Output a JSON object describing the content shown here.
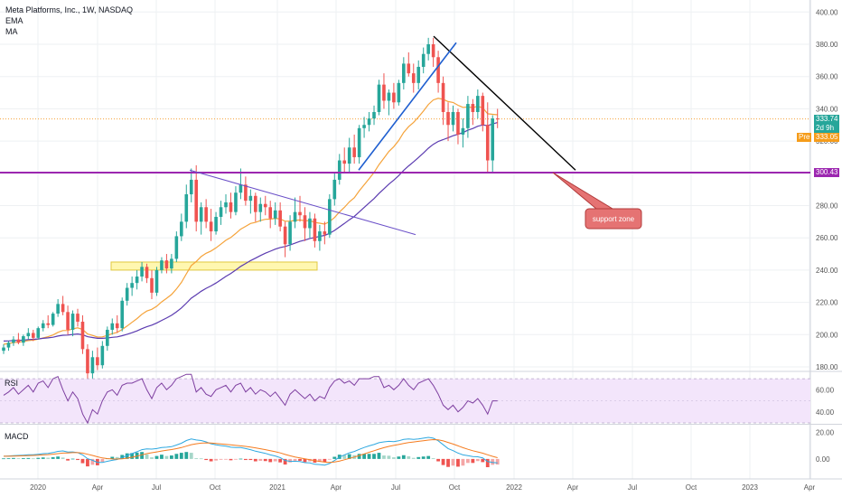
{
  "header": {
    "symbol": "Meta Platforms, Inc., 1W, NASDAQ",
    "indicator1": "EMA",
    "indicator2": "MA"
  },
  "price_labels": {
    "last": "333.74",
    "countdown": "2d 9h",
    "pre_tag": "Pre",
    "pre_value": "333.05",
    "support_value": "300.43"
  },
  "annotation": {
    "text": "support zone"
  },
  "panes": {
    "rsi_label": "RSI",
    "macd_label": "MACD"
  },
  "colors": {
    "up": "#26a69a",
    "down": "#ef5350",
    "ema": "#f5a33a",
    "ma": "#5b3bb0",
    "support": "#9c27b0",
    "rsi": "#7e3fa0",
    "macd": "#2ea8e0",
    "signal": "#f57c20"
  },
  "chart_data": [
    {
      "type": "candlestick",
      "title": "Meta Platforms, Inc., 1W, NASDAQ",
      "y_ticks": [
        180,
        200,
        220,
        240,
        260,
        280,
        300,
        320,
        340,
        360,
        380,
        400
      ],
      "ylim": [
        178,
        405
      ],
      "x_ticks": [
        "2020",
        "Apr",
        "Jul",
        "Oct",
        "2021",
        "Apr",
        "Jul",
        "Oct",
        "2022",
        "Apr",
        "Jul",
        "Oct",
        "2023",
        "Apr"
      ],
      "support_level": 300.43,
      "last_close": 333.74,
      "premarket": 333.05,
      "ohlc": [
        [
          190,
          194,
          188,
          192
        ],
        [
          192,
          196,
          190,
          195
        ],
        [
          195,
          199,
          193,
          197
        ],
        [
          197,
          201,
          194,
          195
        ],
        [
          195,
          200,
          193,
          199
        ],
        [
          199,
          204,
          197,
          201
        ],
        [
          201,
          203,
          196,
          198
        ],
        [
          198,
          205,
          197,
          204
        ],
        [
          204,
          209,
          202,
          207
        ],
        [
          207,
          212,
          204,
          206
        ],
        [
          206,
          214,
          205,
          213
        ],
        [
          213,
          222,
          211,
          219
        ],
        [
          219,
          224,
          212,
          214
        ],
        [
          214,
          218,
          200,
          203
        ],
        [
          203,
          215,
          199,
          213
        ],
        [
          213,
          216,
          205,
          208
        ],
        [
          208,
          212,
          188,
          191
        ],
        [
          191,
          194,
          172,
          176
        ],
        [
          176,
          190,
          170,
          186
        ],
        [
          186,
          192,
          178,
          181
        ],
        [
          181,
          196,
          179,
          193
        ],
        [
          193,
          205,
          190,
          203
        ],
        [
          203,
          210,
          200,
          207
        ],
        [
          207,
          212,
          201,
          204
        ],
        [
          204,
          223,
          202,
          221
        ],
        [
          221,
          232,
          218,
          229
        ],
        [
          229,
          236,
          224,
          232
        ],
        [
          232,
          240,
          228,
          236
        ],
        [
          236,
          245,
          233,
          242
        ],
        [
          242,
          244,
          232,
          235
        ],
        [
          235,
          240,
          222,
          226
        ],
        [
          226,
          242,
          224,
          240
        ],
        [
          240,
          248,
          238,
          246
        ],
        [
          246,
          250,
          238,
          241
        ],
        [
          241,
          250,
          238,
          247
        ],
        [
          247,
          264,
          245,
          261
        ],
        [
          261,
          275,
          258,
          270
        ],
        [
          270,
          293,
          266,
          287
        ],
        [
          287,
          303,
          282,
          296
        ],
        [
          296,
          305,
          264,
          270
        ],
        [
          270,
          282,
          262,
          279
        ],
        [
          279,
          284,
          266,
          270
        ],
        [
          270,
          278,
          258,
          264
        ],
        [
          264,
          276,
          262,
          273
        ],
        [
          273,
          283,
          268,
          279
        ],
        [
          279,
          287,
          275,
          282
        ],
        [
          282,
          288,
          272,
          276
        ],
        [
          276,
          292,
          274,
          288
        ],
        [
          288,
          303,
          284,
          293
        ],
        [
          293,
          298,
          280,
          283
        ],
        [
          283,
          290,
          275,
          286
        ],
        [
          286,
          288,
          270,
          276
        ],
        [
          276,
          285,
          270,
          281
        ],
        [
          281,
          286,
          274,
          279
        ],
        [
          279,
          283,
          266,
          272
        ],
        [
          272,
          282,
          268,
          277
        ],
        [
          277,
          282,
          264,
          267
        ],
        [
          267,
          270,
          248,
          256
        ],
        [
          256,
          274,
          252,
          270
        ],
        [
          270,
          285,
          266,
          276
        ],
        [
          276,
          286,
          270,
          274
        ],
        [
          274,
          279,
          258,
          266
        ],
        [
          266,
          276,
          260,
          272
        ],
        [
          272,
          275,
          254,
          258
        ],
        [
          258,
          268,
          252,
          264
        ],
        [
          264,
          270,
          256,
          262
        ],
        [
          262,
          287,
          260,
          284
        ],
        [
          284,
          300,
          280,
          296
        ],
        [
          296,
          312,
          293,
          308
        ],
        [
          308,
          316,
          300,
          306
        ],
        [
          306,
          322,
          300,
          316
        ],
        [
          316,
          324,
          306,
          310
        ],
        [
          310,
          330,
          306,
          328
        ],
        [
          328,
          335,
          322,
          330
        ],
        [
          330,
          338,
          326,
          334
        ],
        [
          334,
          342,
          330,
          338
        ],
        [
          338,
          358,
          336,
          355
        ],
        [
          355,
          362,
          340,
          345
        ],
        [
          345,
          352,
          336,
          350
        ],
        [
          350,
          356,
          340,
          344
        ],
        [
          344,
          358,
          342,
          356
        ],
        [
          356,
          372,
          352,
          368
        ],
        [
          368,
          375,
          360,
          362
        ],
        [
          362,
          368,
          350,
          356
        ],
        [
          356,
          370,
          352,
          366
        ],
        [
          366,
          378,
          362,
          374
        ],
        [
          374,
          384,
          370,
          380
        ],
        [
          380,
          384,
          366,
          372
        ],
        [
          372,
          376,
          350,
          356
        ],
        [
          356,
          360,
          330,
          338
        ],
        [
          338,
          344,
          320,
          330
        ],
        [
          330,
          342,
          326,
          338
        ],
        [
          338,
          340,
          318,
          324
        ],
        [
          324,
          334,
          316,
          328
        ],
        [
          328,
          348,
          322,
          343
        ],
        [
          343,
          346,
          330,
          338
        ],
        [
          338,
          352,
          334,
          348
        ],
        [
          348,
          350,
          326,
          330
        ],
        [
          330,
          344,
          300,
          308
        ],
        [
          308,
          336,
          300,
          334
        ],
        [
          334,
          340,
          328,
          333.74
        ]
      ],
      "ema": [
        194,
        194.5,
        195,
        195.3,
        195.8,
        196.3,
        196.6,
        197.2,
        198,
        198.7,
        199.8,
        201.4,
        202.5,
        202.6,
        203.6,
        204.2,
        203.2,
        200.4,
        199.5,
        198.5,
        198.6,
        199.5,
        200.6,
        201.4,
        203.2,
        205.3,
        207.6,
        209.9,
        212.6,
        214.6,
        215.7,
        217.6,
        220.3,
        222.5,
        224.9,
        228.3,
        232.4,
        237.7,
        242.8,
        245.3,
        248.4,
        250.4,
        251.8,
        253.8,
        256.1,
        258.5,
        260.2,
        262.7,
        265.4,
        267.1,
        268.9,
        269.6,
        270.7,
        271.5,
        271.6,
        272.1,
        271.7,
        270.3,
        270.3,
        270.8,
        271.1,
        270.6,
        270.7,
        269.5,
        269.1,
        268.5,
        270,
        272.6,
        276.1,
        278.9,
        282.3,
        284.9,
        289.1,
        292.9,
        296.7,
        300.5,
        305.4,
        309.4,
        313.5,
        316.5,
        320.4,
        325.3,
        328.9,
        331.6,
        334.9,
        338.6,
        342.7,
        345.5,
        346.5,
        345.9,
        344.5,
        343.9,
        342.2,
        340.9,
        341.1,
        340.8,
        341.5,
        340.6,
        336.9,
        336.6,
        336.3
      ],
      "ma": [
        196,
        196.1,
        196.3,
        196.4,
        196.6,
        196.9,
        197.1,
        197.3,
        197.7,
        198,
        198.4,
        199.1,
        199.6,
        199.7,
        200.1,
        200.4,
        199.9,
        198.7,
        198.2,
        197.7,
        197.7,
        197.9,
        198.3,
        198.6,
        199.3,
        200.2,
        201.2,
        202.3,
        203.7,
        204.9,
        205.9,
        207.2,
        208.8,
        210.3,
        212,
        214.1,
        216.5,
        219.5,
        222.6,
        224.7,
        226.9,
        228.7,
        230.2,
        232,
        234,
        236.1,
        237.9,
        240,
        242.3,
        244.1,
        245.9,
        247.4,
        249,
        250.5,
        251.7,
        253,
        254,
        254.6,
        255.6,
        256.7,
        257.8,
        258.6,
        259.6,
        260.2,
        260.9,
        261.5,
        262.8,
        264.6,
        266.8,
        268.9,
        271.2,
        273.3,
        276,
        278.8,
        281.6,
        284.3,
        287.5,
        290.4,
        293.3,
        295.8,
        298.6,
        301.8,
        304.6,
        307.1,
        309.8,
        312.6,
        315.6,
        318,
        319.8,
        320.9,
        322.1,
        323.3,
        324.2,
        325.2,
        326.7,
        327.8,
        329.2,
        330,
        329.6,
        330.6,
        331.5
      ]
    },
    {
      "type": "line",
      "name_label": "RSI",
      "y_ticks": [
        40,
        60
      ],
      "ylim": [
        30,
        75
      ],
      "bands": [
        30,
        70
      ],
      "values": [
        55,
        58,
        62,
        56,
        60,
        64,
        58,
        66,
        68,
        62,
        70,
        72,
        60,
        50,
        58,
        52,
        38,
        30,
        42,
        38,
        50,
        58,
        60,
        55,
        64,
        66,
        66,
        68,
        70,
        60,
        52,
        62,
        66,
        60,
        64,
        70,
        72,
        74,
        74,
        58,
        62,
        56,
        54,
        60,
        62,
        64,
        58,
        64,
        66,
        58,
        62,
        56,
        60,
        58,
        54,
        58,
        52,
        46,
        56,
        60,
        56,
        52,
        56,
        50,
        54,
        52,
        62,
        68,
        70,
        66,
        68,
        64,
        70,
        70,
        70,
        72,
        72,
        62,
        64,
        60,
        64,
        70,
        64,
        60,
        66,
        68,
        70,
        64,
        56,
        46,
        42,
        46,
        40,
        44,
        50,
        48,
        52,
        46,
        38,
        50,
        50
      ]
    },
    {
      "type": "bar+line",
      "name_label": "MACD",
      "y_ticks": [
        0.0,
        20.0
      ],
      "ylim": [
        -15,
        25
      ],
      "histogram": [
        0.4,
        0.5,
        0.7,
        0.5,
        0.6,
        0.7,
        0.4,
        0.8,
        1.1,
        0.9,
        1.3,
        1.8,
        1.0,
        -1.2,
        0.2,
        -0.8,
        -3.2,
        -5.6,
        -4.4,
        -4.8,
        -2.2,
        0.4,
        1.6,
        1.4,
        3.0,
        4.2,
        4.4,
        4.8,
        5.2,
        3.4,
        1.2,
        2.2,
        3.2,
        2.2,
        2.6,
        3.8,
        4.6,
        5.2,
        4.6,
        0.6,
        0.4,
        -0.8,
        -1.8,
        -1.2,
        -0.6,
        -0.2,
        -1.0,
        -0.2,
        0.2,
        -0.8,
        -0.8,
        -1.8,
        -1.4,
        -1.6,
        -2.4,
        -1.8,
        -2.6,
        -4.2,
        -2.6,
        -1.4,
        -1.4,
        -2.4,
        -1.8,
        -2.8,
        -2.2,
        -2.4,
        -0.4,
        1.6,
        3.2,
        3.0,
        3.6,
        2.8,
        3.8,
        3.8,
        3.8,
        3.8,
        4.6,
        2.6,
        2.4,
        1.2,
        1.8,
        2.8,
        2.0,
        0.8,
        1.4,
        1.8,
        2.2,
        0.6,
        -1.8,
        -4.6,
        -6.0,
        -5.0,
        -5.8,
        -5.0,
        -3.0,
        -3.0,
        -1.6,
        -2.4,
        -6.2,
        -4.4,
        -4.2
      ],
      "macd": [
        2,
        2.2,
        2.5,
        2.6,
        2.8,
        3.1,
        3.1,
        3.5,
        4,
        4.2,
        4.8,
        5.7,
        6,
        5.2,
        5.3,
        4.7,
        3,
        0.2,
        -1,
        -2.6,
        -2.6,
        -1.8,
        -1,
        -0.4,
        1,
        2.6,
        4,
        5.4,
        7,
        7.6,
        7.4,
        7.8,
        8.6,
        8.8,
        9.2,
        10.4,
        11.8,
        13.8,
        15,
        14.2,
        13.8,
        12.8,
        11.4,
        10.6,
        10,
        9.6,
        8.8,
        8.6,
        8.6,
        7.8,
        7,
        5.8,
        5,
        4.2,
        3,
        2.2,
        1,
        -1.2,
        -1.8,
        -1.8,
        -2,
        -2.8,
        -3,
        -4,
        -4.2,
        -4.6,
        -3.4,
        -1.2,
        1.4,
        3,
        4.6,
        5.6,
        7.2,
        8.6,
        9.8,
        10.8,
        12.2,
        12.8,
        13.2,
        13,
        13.6,
        14.6,
        15,
        14.6,
        15,
        15.6,
        16.2,
        15.6,
        13.6,
        10.6,
        7.8,
        6.2,
        4.4,
        3,
        2.4,
        1.8,
        1.6,
        0.8,
        -2,
        -2.6,
        -3
      ]
    }
  ]
}
